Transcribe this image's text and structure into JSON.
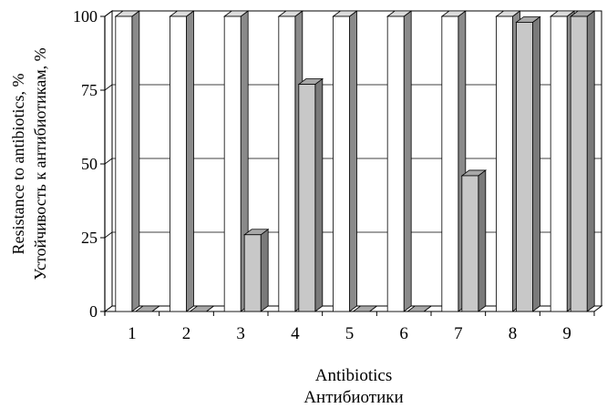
{
  "chart_data": {
    "type": "bar",
    "categories": [
      "1",
      "2",
      "3",
      "4",
      "5",
      "6",
      "7",
      "8",
      "9"
    ],
    "series": [
      {
        "values": [
          100,
          100,
          100,
          100,
          100,
          100,
          100,
          100,
          100
        ]
      },
      {
        "values": [
          0,
          0,
          26,
          77,
          0,
          0,
          46,
          98,
          100
        ]
      }
    ],
    "title": "",
    "xlabel": [
      "Antibiotics",
      "Антибиотики"
    ],
    "ylabel": [
      "Resistance to antibiotics, %",
      "Устойчивость к антибиотикам, %"
    ],
    "ylim": [
      0,
      100
    ],
    "yticks": [
      0,
      25,
      50,
      75,
      100
    ],
    "grid": true,
    "style": "3d",
    "colors": {
      "series1_front": "#ffffff",
      "series1_side": "#8a8a8a",
      "series1_top": "#dcdcdc",
      "series2_front": "#c8c8c8",
      "series2_side": "#7a7a7a",
      "series2_top": "#a8a8a8",
      "grid": "#000000",
      "wall": "#ffffff"
    }
  }
}
